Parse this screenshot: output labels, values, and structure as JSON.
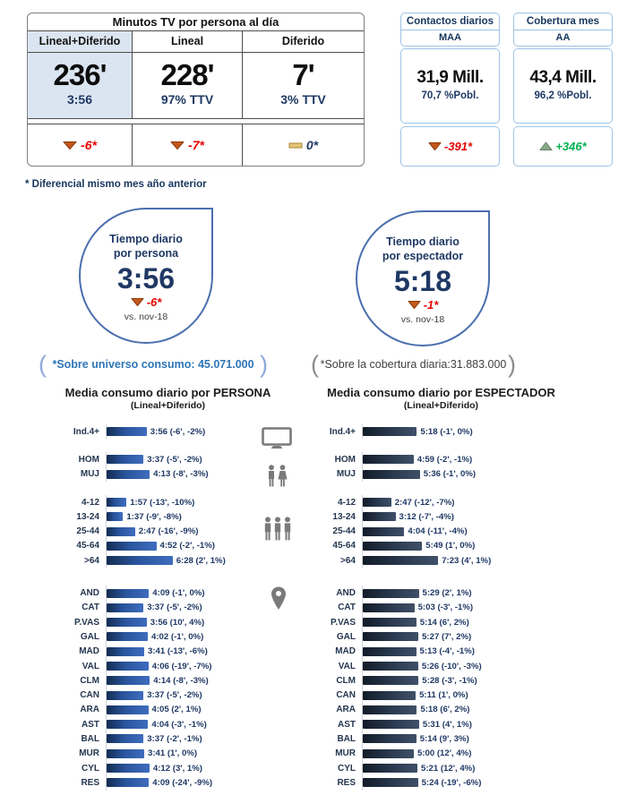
{
  "kpi_table": {
    "title": "Minutos TV por persona al día",
    "columns": [
      {
        "header": "Lineal+Diferido",
        "value": "236'",
        "sub": "3:56",
        "delta": "-6*",
        "trend": "down"
      },
      {
        "header": "Lineal",
        "value": "228'",
        "sub": "97% TTV",
        "delta": "-7*",
        "trend": "down"
      },
      {
        "header": "Diferido",
        "value": "7'",
        "sub": "3% TTV",
        "delta": "0*",
        "trend": "flat"
      }
    ]
  },
  "side_cards": [
    {
      "title": "Contactos diarios",
      "audience": "MAA",
      "value": "31,9 Mill.",
      "population": "70,7 %Pobl.",
      "delta": "-391*",
      "trend": "down"
    },
    {
      "title": "Cobertura mes",
      "audience": "AA",
      "value": "43,4 Mill.",
      "population": "96,2 %Pobl.",
      "delta": "+346*",
      "trend": "up"
    }
  ],
  "footnote": "* Diferencial mismo mes año anterior",
  "droplets": [
    {
      "title_line1": "Tiempo diario",
      "title_line2": "por persona",
      "value": "3:56",
      "delta": "-6*",
      "trend": "down",
      "vs": "vs. nov-18"
    },
    {
      "title_line1": "Tiempo diario",
      "title_line2": "por espectador",
      "value": "5:18",
      "delta": "-1*",
      "trend": "down",
      "vs": "vs. nov-18"
    }
  ],
  "bracket_notes": [
    {
      "text": "*Sobre universo consumo: 45.071.000"
    },
    {
      "text": "*Sobre la cobertura diaria:31.883.000"
    }
  ],
  "icons": {
    "gutter": [
      "tv-icon",
      "couple-icon",
      "people-group-icon",
      "location-pin-icon"
    ],
    "trend": {
      "down": "triangle-down-icon",
      "up": "triangle-up-icon",
      "flat": "dash-icon"
    }
  },
  "colors": {
    "navy_text": "#1f3864",
    "red_delta": "#e60000",
    "green_delta": "#00b050",
    "header_fill": "#dbe5f1",
    "card_border": "#9dc3e6",
    "droplet_border": "#4a6fae",
    "bar_left": [
      "#142c52",
      "#3f6dbe"
    ],
    "bar_right": [
      "#121b28",
      "#3f5068"
    ],
    "triangle_down": "#c4581a",
    "triangle_up": "#8aa98a",
    "dash_flat": "#e3c677"
  },
  "chart_data": [
    {
      "type": "bar",
      "orientation": "horizontal",
      "title": "Media consumo diario por PERSONA",
      "subtitle": "(Lineal+Diferido)",
      "unit": "hours:minutes per day, bars start at 0",
      "groups": [
        {
          "name": "total",
          "rows": [
            {
              "label": "Ind.4+",
              "time": "3:56",
              "minutes": 236,
              "annotation": "(-6', -2%)"
            }
          ]
        },
        {
          "name": "gender",
          "rows": [
            {
              "label": "HOM",
              "time": "3:37",
              "minutes": 217,
              "annotation": "(-5', -2%)"
            },
            {
              "label": "MUJ",
              "time": "4:13",
              "minutes": 253,
              "annotation": "(-8', -3%)"
            }
          ]
        },
        {
          "name": "age",
          "rows": [
            {
              "label": "4-12",
              "time": "1:57",
              "minutes": 117,
              "annotation": "(-13', -10%)"
            },
            {
              "label": "13-24",
              "time": "1:37",
              "minutes": 97,
              "annotation": "(-9', -8%)"
            },
            {
              "label": "25-44",
              "time": "2:47",
              "minutes": 167,
              "annotation": "(-16', -9%)"
            },
            {
              "label": "45-64",
              "time": "4:52",
              "minutes": 292,
              "annotation": "(-2', -1%)"
            },
            {
              "label": ">64",
              "time": "6:28",
              "minutes": 388,
              "annotation": "(2', 1%)"
            }
          ]
        },
        {
          "name": "region",
          "rows": [
            {
              "label": "AND",
              "time": "4:09",
              "minutes": 249,
              "annotation": "(-1', 0%)"
            },
            {
              "label": "CAT",
              "time": "3:37",
              "minutes": 217,
              "annotation": "(-5', -2%)"
            },
            {
              "label": "P.VAS",
              "time": "3:56",
              "minutes": 236,
              "annotation": "(10', 4%)"
            },
            {
              "label": "GAL",
              "time": "4:02",
              "minutes": 242,
              "annotation": "(-1', 0%)"
            },
            {
              "label": "MAD",
              "time": "3:41",
              "minutes": 221,
              "annotation": "(-13', -6%)"
            },
            {
              "label": "VAL",
              "time": "4:06",
              "minutes": 246,
              "annotation": "(-19', -7%)"
            },
            {
              "label": "CLM",
              "time": "4:14",
              "minutes": 254,
              "annotation": "(-8', -3%)"
            },
            {
              "label": "CAN",
              "time": "3:37",
              "minutes": 217,
              "annotation": "(-5', -2%)"
            },
            {
              "label": "ARA",
              "time": "4:05",
              "minutes": 245,
              "annotation": "(2', 1%)"
            },
            {
              "label": "AST",
              "time": "4:04",
              "minutes": 244,
              "annotation": "(-3', -1%)"
            },
            {
              "label": "BAL",
              "time": "3:37",
              "minutes": 217,
              "annotation": "(-2', -1%)"
            },
            {
              "label": "MUR",
              "time": "3:41",
              "minutes": 221,
              "annotation": "(1', 0%)"
            },
            {
              "label": "CYL",
              "time": "4:12",
              "minutes": 252,
              "annotation": "(3', 1%)"
            },
            {
              "label": "RES",
              "time": "4:09",
              "minutes": 249,
              "annotation": "(-24', -9%)"
            }
          ]
        }
      ]
    },
    {
      "type": "bar",
      "orientation": "horizontal",
      "title": "Media consumo diario por ESPECTADOR",
      "subtitle": "(Lineal+Diferido)",
      "unit": "hours:minutes per day, bars start at 0",
      "groups": [
        {
          "name": "total",
          "rows": [
            {
              "label": "Ind.4+",
              "time": "5:18",
              "minutes": 318,
              "annotation": "(-1', 0%)"
            }
          ]
        },
        {
          "name": "gender",
          "rows": [
            {
              "label": "HOM",
              "time": "4:59",
              "minutes": 299,
              "annotation": "(-2', -1%)"
            },
            {
              "label": "MUJ",
              "time": "5:36",
              "minutes": 336,
              "annotation": "(-1', 0%)"
            }
          ]
        },
        {
          "name": "age",
          "rows": [
            {
              "label": "4-12",
              "time": "2:47",
              "minutes": 167,
              "annotation": "(-12', -7%)"
            },
            {
              "label": "13-24",
              "time": "3:12",
              "minutes": 192,
              "annotation": "(-7', -4%)"
            },
            {
              "label": "25-44",
              "time": "4:04",
              "minutes": 244,
              "annotation": "(-11', -4%)"
            },
            {
              "label": "45-64",
              "time": "5:49",
              "minutes": 349,
              "annotation": "(1', 0%)"
            },
            {
              "label": ">64",
              "time": "7:23",
              "minutes": 443,
              "annotation": "(4', 1%)"
            }
          ]
        },
        {
          "name": "region",
          "rows": [
            {
              "label": "AND",
              "time": "5:29",
              "minutes": 329,
              "annotation": "(2', 1%)"
            },
            {
              "label": "CAT",
              "time": "5:03",
              "minutes": 303,
              "annotation": "(-3', -1%)"
            },
            {
              "label": "P.VAS",
              "time": "5:14",
              "minutes": 314,
              "annotation": "(6', 2%)"
            },
            {
              "label": "GAL",
              "time": "5:27",
              "minutes": 327,
              "annotation": "(7', 2%)"
            },
            {
              "label": "MAD",
              "time": "5:13",
              "minutes": 313,
              "annotation": "(-4', -1%)"
            },
            {
              "label": "VAL",
              "time": "5:26",
              "minutes": 326,
              "annotation": "(-10', -3%)"
            },
            {
              "label": "CLM",
              "time": "5:28",
              "minutes": 328,
              "annotation": "(-3', -1%)"
            },
            {
              "label": "CAN",
              "time": "5:11",
              "minutes": 311,
              "annotation": "(1', 0%)"
            },
            {
              "label": "ARA",
              "time": "5:18",
              "minutes": 318,
              "annotation": "(6', 2%)"
            },
            {
              "label": "AST",
              "time": "5:31",
              "minutes": 331,
              "annotation": "(4', 1%)"
            },
            {
              "label": "BAL",
              "time": "5:14",
              "minutes": 314,
              "annotation": "(9', 3%)"
            },
            {
              "label": "MUR",
              "time": "5:00",
              "minutes": 300,
              "annotation": "(12', 4%)"
            },
            {
              "label": "CYL",
              "time": "5:21",
              "minutes": 321,
              "annotation": "(12', 4%)"
            },
            {
              "label": "RES",
              "time": "5:24",
              "minutes": 324,
              "annotation": "(-19', -6%)"
            }
          ]
        }
      ]
    }
  ]
}
